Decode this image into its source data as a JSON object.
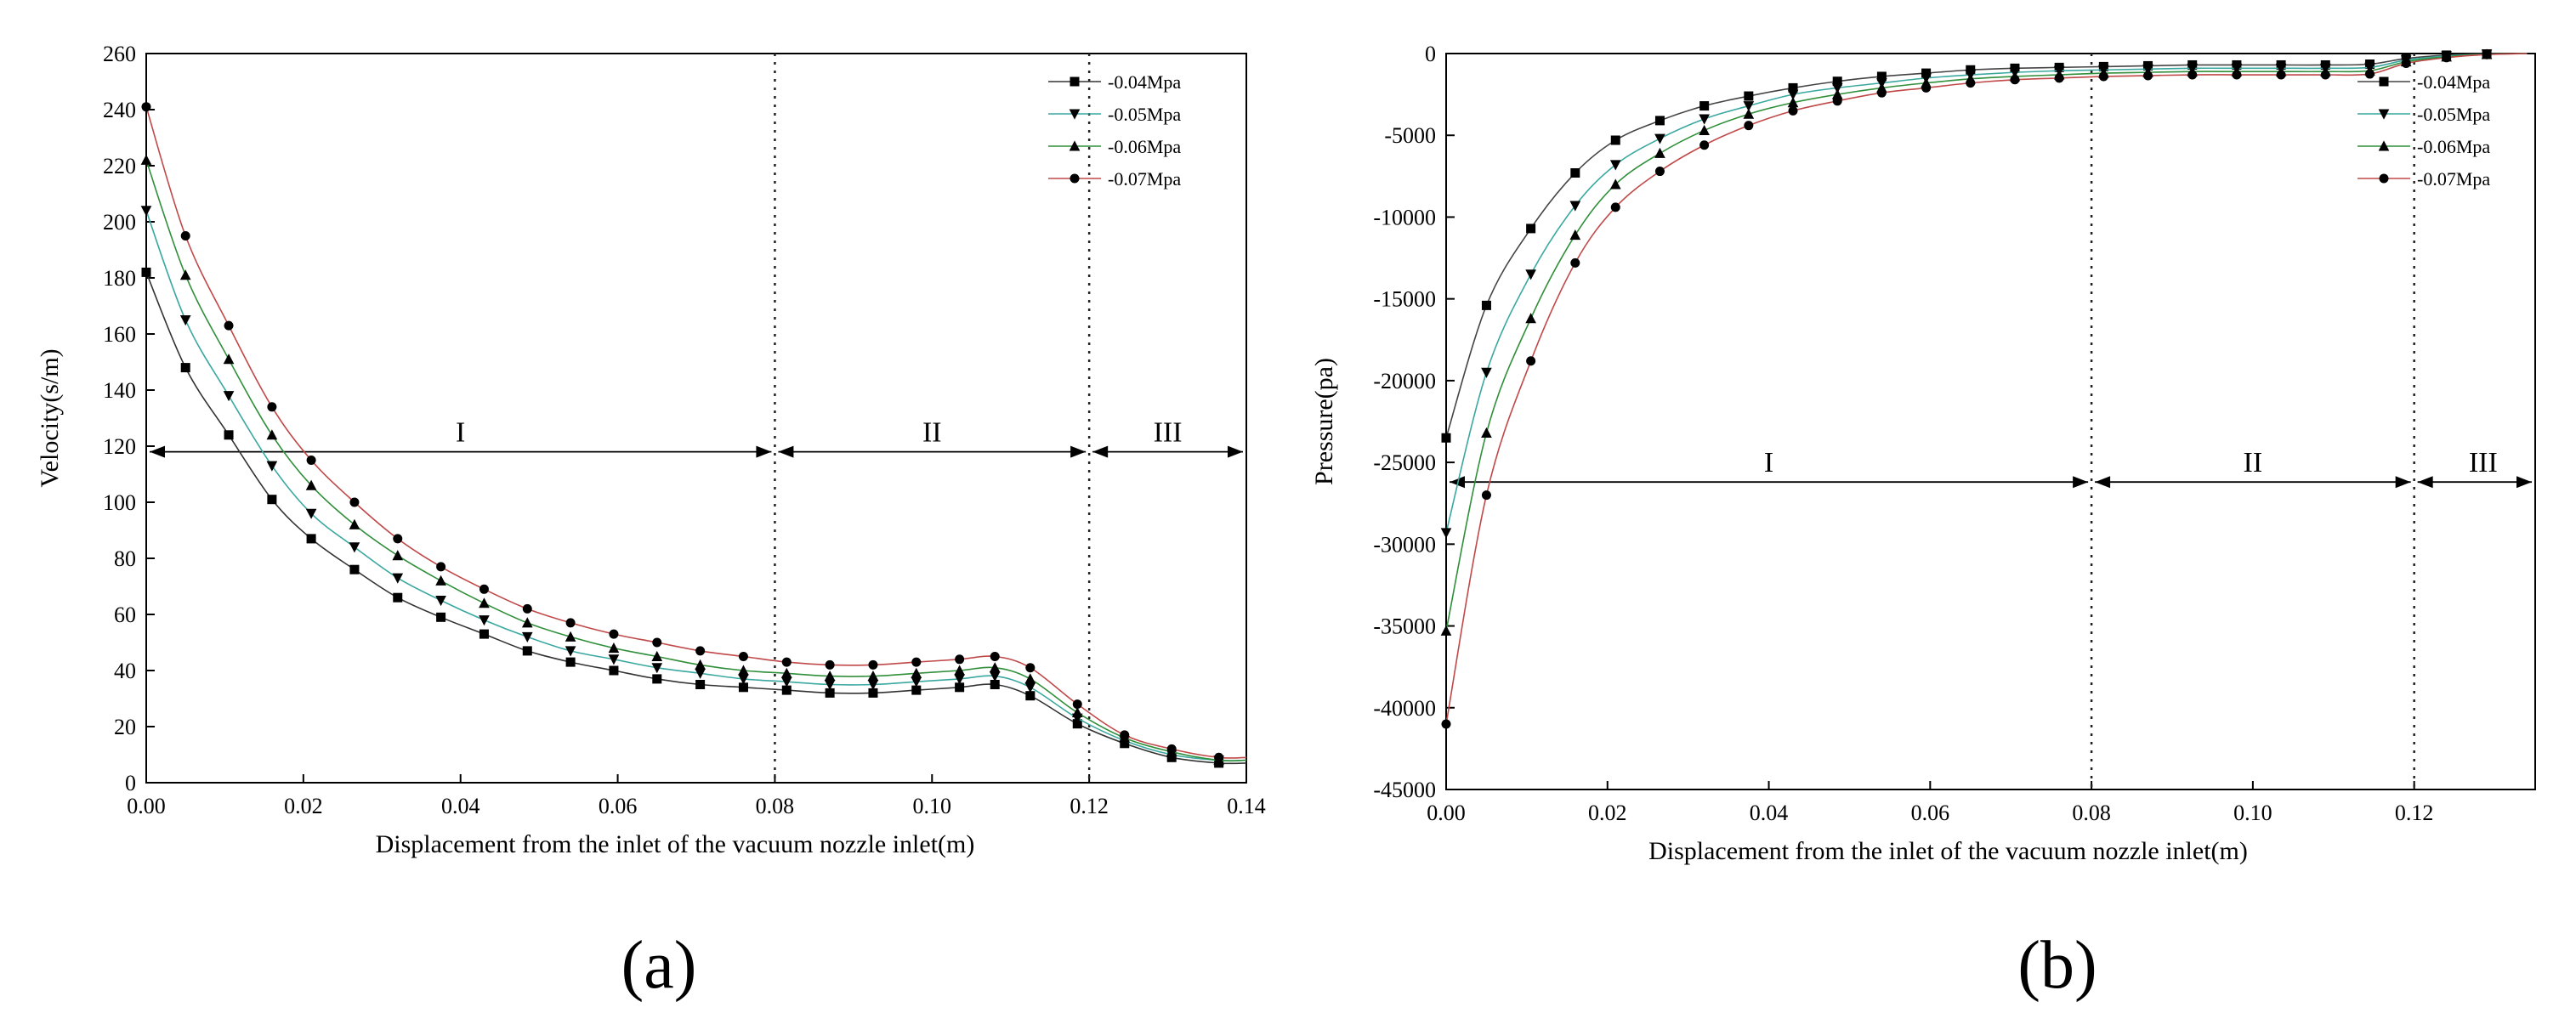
{
  "chart_data": [
    {
      "type": "line",
      "panel_label": "(a)",
      "title": "",
      "xlabel": "Displacement from the inlet of the vacuum nozzle inlet(m)",
      "ylabel": "Velocity(s/m)",
      "xlim": [
        0,
        0.14
      ],
      "ylim": [
        0,
        260
      ],
      "xticks": [
        "0.00",
        "0.02",
        "0.04",
        "0.06",
        "0.08",
        "0.10",
        "0.12",
        "0.14"
      ],
      "yticks": [
        "0",
        "20",
        "40",
        "60",
        "80",
        "100",
        "120",
        "140",
        "160",
        "180",
        "200",
        "220",
        "240",
        "260"
      ],
      "grid": false,
      "legend_position": "top-right",
      "vertical_lines": [
        0.08,
        0.12
      ],
      "regions": [
        {
          "label": "I",
          "from": 0.0,
          "to": 0.08,
          "y": 118
        },
        {
          "label": "II",
          "from": 0.08,
          "to": 0.12,
          "y": 118
        },
        {
          "label": "III",
          "from": 0.12,
          "to": 0.14,
          "y": 118
        }
      ],
      "x": [
        0.0,
        0.005,
        0.0105,
        0.016,
        0.021,
        0.0265,
        0.032,
        0.0375,
        0.043,
        0.0485,
        0.054,
        0.0595,
        0.065,
        0.0705,
        0.076,
        0.0815,
        0.087,
        0.0925,
        0.098,
        0.1035,
        0.108,
        0.1125,
        0.1185,
        0.1245,
        0.1305,
        0.1365,
        0.14
      ],
      "series": [
        {
          "name": "-0.04Mpa",
          "marker": "square",
          "color": "#333333",
          "values": [
            182,
            148,
            124,
            101,
            87,
            76,
            66,
            59,
            53,
            47,
            43,
            40,
            37,
            35,
            34,
            33,
            32,
            32,
            33,
            34,
            35,
            31,
            21,
            14,
            9,
            7,
            7
          ]
        },
        {
          "name": "-0.05Mpa",
          "marker": "triangle-down",
          "color": "#3aa8a0",
          "values": [
            204,
            165,
            138,
            113,
            96,
            84,
            73,
            65,
            58,
            52,
            47,
            44,
            41,
            39,
            37,
            36,
            35,
            35,
            36,
            37,
            38,
            34,
            23,
            15,
            10,
            8,
            8
          ]
        },
        {
          "name": "-0.06Mpa",
          "marker": "triangle-up",
          "color": "#2f8f3a",
          "values": [
            222,
            181,
            151,
            124,
            106,
            92,
            81,
            72,
            64,
            57,
            52,
            48,
            45,
            42,
            40,
            39,
            38,
            38,
            39,
            40,
            41,
            37,
            25,
            16,
            11,
            8,
            8
          ]
        },
        {
          "name": "-0.07Mpa",
          "marker": "circle",
          "color": "#c04848",
          "values": [
            241,
            195,
            163,
            134,
            115,
            100,
            87,
            77,
            69,
            62,
            57,
            53,
            50,
            47,
            45,
            43,
            42,
            42,
            43,
            44,
            45,
            41,
            28,
            17,
            12,
            9,
            9
          ]
        }
      ]
    },
    {
      "type": "line",
      "panel_label": "(b)",
      "title": "",
      "xlabel": "Displacement from the inlet of the vacuum nozzle inlet(m)",
      "ylabel": "Pressure(pa)",
      "xlim": [
        0,
        0.135
      ],
      "ylim": [
        -45000,
        0
      ],
      "xticks": [
        "0.00",
        "0.02",
        "0.04",
        "0.06",
        "0.08",
        "0.10",
        "0.12"
      ],
      "xtick_values": [
        0,
        0.02,
        0.04,
        0.06,
        0.08,
        0.1,
        0.12
      ],
      "yticks": [
        "0",
        "-5000",
        "-10000",
        "-15000",
        "-20000",
        "-25000",
        "-30000",
        "-35000",
        "-40000",
        "-45000"
      ],
      "ytick_values": [
        0,
        -5000,
        -10000,
        -15000,
        -20000,
        -25000,
        -30000,
        -35000,
        -40000,
        -45000
      ],
      "grid": false,
      "legend_position": "top-right",
      "vertical_lines": [
        0.08,
        0.12
      ],
      "regions": [
        {
          "label": "I",
          "from": 0.0,
          "to": 0.08,
          "y": -26200
        },
        {
          "label": "II",
          "from": 0.08,
          "to": 0.12,
          "y": -26200
        },
        {
          "label": "III",
          "from": 0.12,
          "to": 0.135,
          "y": -26200
        }
      ],
      "x": [
        0.0,
        0.005,
        0.0105,
        0.016,
        0.021,
        0.0265,
        0.032,
        0.0375,
        0.043,
        0.0485,
        0.054,
        0.0595,
        0.065,
        0.0705,
        0.076,
        0.0815,
        0.087,
        0.0925,
        0.098,
        0.1035,
        0.109,
        0.1145,
        0.119,
        0.124,
        0.129,
        0.134
      ],
      "series": [
        {
          "name": "-0.04Mpa",
          "marker": "square",
          "color": "#444444",
          "values": [
            -23500,
            -15400,
            -10700,
            -7300,
            -5300,
            -4100,
            -3200,
            -2600,
            -2100,
            -1700,
            -1400,
            -1200,
            -1000,
            -900,
            -850,
            -800,
            -750,
            -700,
            -700,
            -700,
            -700,
            -650,
            -300,
            -100,
            -30,
            0
          ]
        },
        {
          "name": "-0.05Mpa",
          "marker": "triangle-down",
          "color": "#3aa8a0",
          "values": [
            -29300,
            -19500,
            -13500,
            -9300,
            -6800,
            -5200,
            -4000,
            -3200,
            -2500,
            -2100,
            -1800,
            -1500,
            -1300,
            -1150,
            -1050,
            -1000,
            -950,
            -900,
            -900,
            -900,
            -900,
            -850,
            -400,
            -150,
            -40,
            0
          ]
        },
        {
          "name": "-0.06Mpa",
          "marker": "triangle-up",
          "color": "#2f8f3a",
          "values": [
            -35300,
            -23200,
            -16200,
            -11100,
            -8000,
            -6100,
            -4700,
            -3700,
            -3000,
            -2500,
            -2100,
            -1800,
            -1550,
            -1400,
            -1300,
            -1200,
            -1150,
            -1100,
            -1100,
            -1100,
            -1100,
            -1050,
            -500,
            -200,
            -50,
            0
          ]
        },
        {
          "name": "-0.07Mpa",
          "marker": "circle",
          "color": "#c04848",
          "values": [
            -41000,
            -27000,
            -18800,
            -12800,
            -9400,
            -7200,
            -5600,
            -4400,
            -3500,
            -2900,
            -2400,
            -2100,
            -1800,
            -1600,
            -1500,
            -1400,
            -1350,
            -1300,
            -1300,
            -1300,
            -1300,
            -1250,
            -600,
            -250,
            -60,
            0
          ]
        }
      ]
    }
  ]
}
